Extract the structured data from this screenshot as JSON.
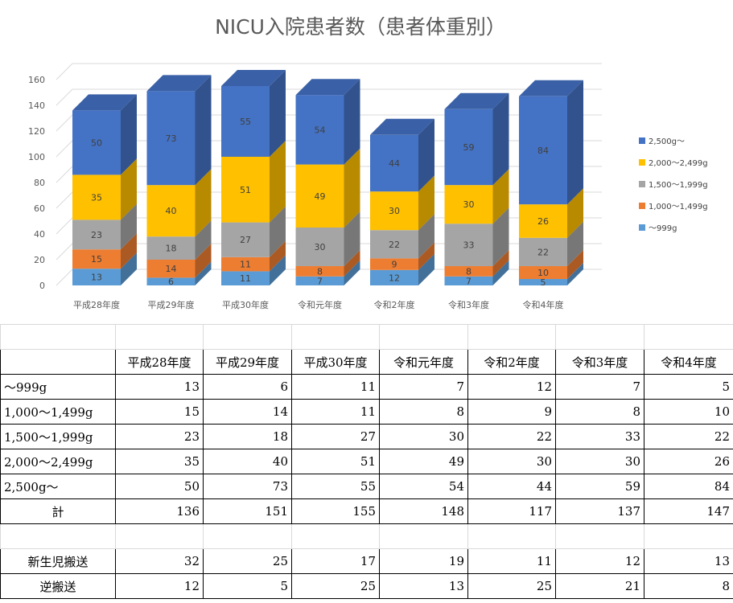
{
  "chart_data": {
    "type": "bar",
    "stacked": true,
    "title": "NICU入院患者数（患者体重別）",
    "categories": [
      "平成28年度",
      "平成29年度",
      "平成30年度",
      "令和元年度",
      "令和2年度",
      "令和3年度",
      "令和4年度"
    ],
    "series": [
      {
        "name": "～999g",
        "color": "#5b9bd5",
        "values": [
          13,
          6,
          11,
          7,
          12,
          7,
          5
        ]
      },
      {
        "name": "1,000～1,499g",
        "color": "#ed7d31",
        "values": [
          15,
          14,
          11,
          8,
          9,
          8,
          10
        ]
      },
      {
        "name": "1,500～1,999g",
        "color": "#a5a5a5",
        "values": [
          23,
          18,
          27,
          30,
          22,
          33,
          22
        ]
      },
      {
        "name": "2,000～2,499g",
        "color": "#ffc000",
        "values": [
          35,
          40,
          51,
          49,
          30,
          30,
          26
        ]
      },
      {
        "name": "2,500g～",
        "color": "#4472c4",
        "values": [
          50,
          73,
          55,
          54,
          44,
          59,
          84
        ]
      }
    ],
    "ylim": [
      0,
      160
    ],
    "yticks": [
      "0",
      "20",
      "40",
      "60",
      "80",
      "100",
      "120",
      "140",
      "160"
    ],
    "legend_position": "right"
  },
  "table": {
    "headers": [
      "平成28年度",
      "平成29年度",
      "平成30年度",
      "令和元年度",
      "令和2年度",
      "令和3年度",
      "令和4年度"
    ],
    "rows": [
      {
        "label": "～999g",
        "values": [
          "13",
          "6",
          "11",
          "7",
          "12",
          "7",
          "5"
        ]
      },
      {
        "label": "1,000～1,499g",
        "values": [
          "15",
          "14",
          "11",
          "8",
          "9",
          "8",
          "10"
        ]
      },
      {
        "label": "1,500～1,999g",
        "values": [
          "23",
          "18",
          "27",
          "30",
          "22",
          "33",
          "22"
        ]
      },
      {
        "label": "2,000～2,499g",
        "values": [
          "35",
          "40",
          "51",
          "49",
          "30",
          "30",
          "26"
        ]
      },
      {
        "label": "2,500g～",
        "values": [
          "50",
          "73",
          "55",
          "54",
          "44",
          "59",
          "84"
        ]
      },
      {
        "label": "計",
        "values": [
          "136",
          "151",
          "155",
          "148",
          "117",
          "137",
          "147"
        ]
      }
    ],
    "transport_rows": [
      {
        "label": "新生児搬送",
        "values": [
          "32",
          "25",
          "17",
          "19",
          "11",
          "12",
          "13"
        ]
      },
      {
        "label": "逆搬送",
        "values": [
          "12",
          "5",
          "25",
          "13",
          "25",
          "21",
          "8"
        ]
      }
    ]
  }
}
